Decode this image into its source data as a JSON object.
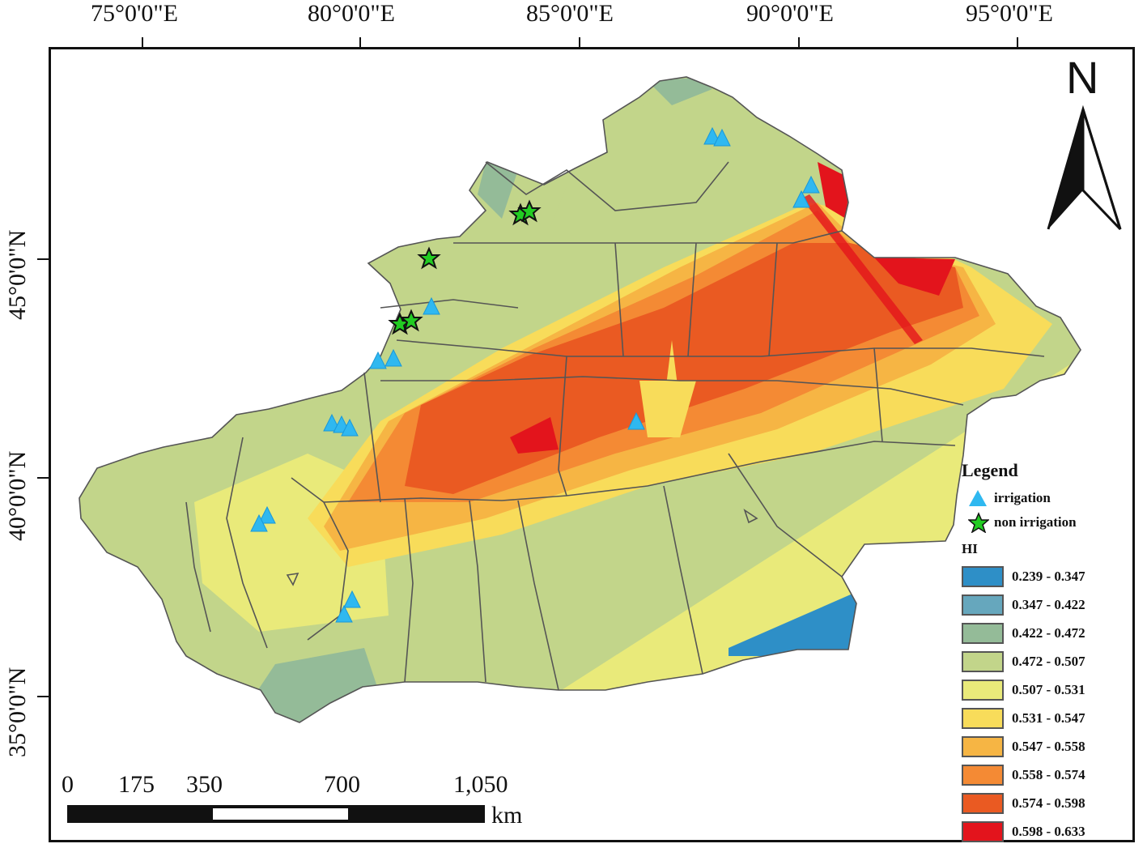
{
  "longitude_labels": [
    "75°0'0\"E",
    "80°0'0\"E",
    "85°0'0\"E",
    "90°0'0\"E",
    "95°0'0\"E"
  ],
  "latitude_labels": [
    "45°0'0\"N",
    "40°0'0\"N",
    "35°0'0\"N"
  ],
  "north_arrow": {
    "letter": "N"
  },
  "legend": {
    "title": "Legend",
    "points": [
      {
        "label": "irrigation",
        "symbol": "triangle-icon",
        "color": "#2fb8f0"
      },
      {
        "label": "non irrigation",
        "symbol": "star-icon",
        "color": "#22cc22"
      }
    ],
    "hi_title": "HI",
    "classes": [
      {
        "label": "0.239 - 0.347",
        "color": "#2e8fc7"
      },
      {
        "label": "0.347 - 0.422",
        "color": "#66a7bd"
      },
      {
        "label": "0.422 - 0.472",
        "color": "#94bb98"
      },
      {
        "label": "0.472 - 0.507",
        "color": "#c2d58a"
      },
      {
        "label": "0.507 - 0.531",
        "color": "#e9ea7a"
      },
      {
        "label": "0.531 - 0.547",
        "color": "#f8dc5a"
      },
      {
        "label": "0.547 - 0.558",
        "color": "#f6b544"
      },
      {
        "label": "0.558 - 0.574",
        "color": "#f48a34"
      },
      {
        "label": "0.574 - 0.598",
        "color": "#ea5a22"
      },
      {
        "label": "0.598 - 0.633",
        "color": "#e3141c"
      }
    ]
  },
  "scale_bar": {
    "ticks": [
      "0",
      "175",
      "350",
      "700",
      "1,050"
    ],
    "unit": "km"
  }
}
